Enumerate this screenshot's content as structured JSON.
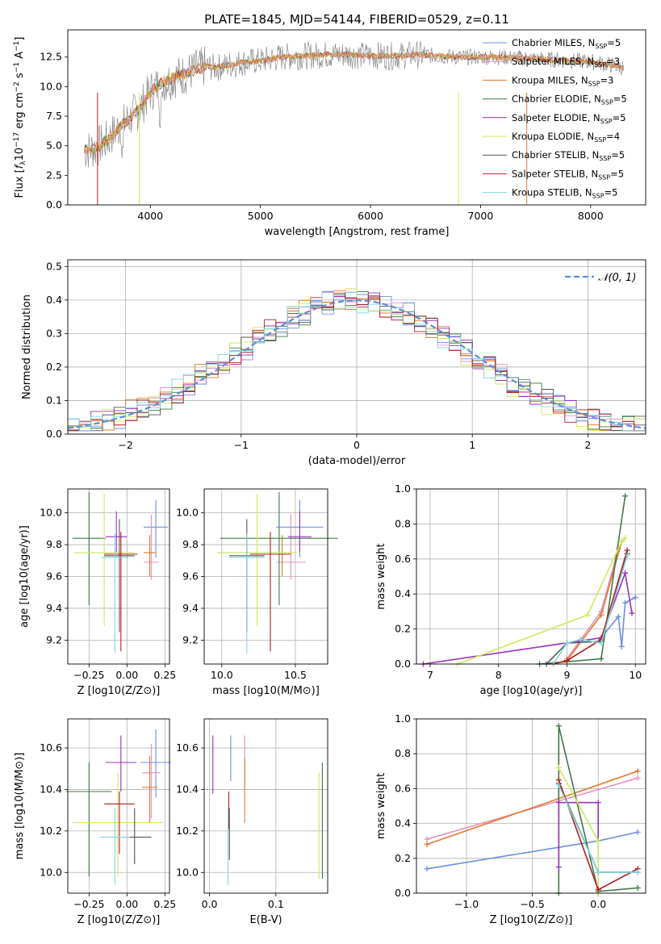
{
  "title": "PLATE=1845, MJD=54144, FIBERID=0529, z=0.11",
  "colors": {
    "chabrier_miles": "#6b8fe0",
    "salpeter_miles": "#e88ec0",
    "kroupa_miles": "#e07a2a",
    "chabrier_elodie": "#3d7a45",
    "salpeter_elodie": "#9b2fc0",
    "kroupa_elodie": "#cfe85a",
    "chabrier_stelib": "#555555",
    "salpeter_stelib": "#b51d1d",
    "kroupa_stelib": "#7fd6e0",
    "normal": "#5b8fd6",
    "spectrum": "#808080"
  },
  "chart_data": [
    {
      "id": "spectrum",
      "type": "line",
      "xlabel": "wavelength [Angstrom, rest frame]",
      "ylabel": "Flux [f_λ 10^-17 erg cm^-2 s^-1 A^-1]",
      "xlim": [
        3250,
        8500
      ],
      "ylim": [
        0,
        14.8
      ],
      "xticks": [
        "4000",
        "5000",
        "6000",
        "7000",
        "8000"
      ],
      "yticks": [
        "0.0",
        "2.5",
        "5.0",
        "7.5",
        "10.0",
        "12.5"
      ],
      "grid": false,
      "legend_position": "right",
      "legend": [
        {
          "label": "Chabrier MILES, N_SSP=5",
          "color": "chabrier_miles"
        },
        {
          "label": "Salpeter MILES, N_SSP=3",
          "color": "salpeter_miles"
        },
        {
          "label": "Kroupa MILES, N_SSP=3",
          "color": "kroupa_miles"
        },
        {
          "label": "Chabrier ELODIE, N_SSP=5",
          "color": "chabrier_elodie"
        },
        {
          "label": "Salpeter ELODIE, N_SSP=5",
          "color": "salpeter_elodie"
        },
        {
          "label": "Kroupa ELODIE, N_SSP=4",
          "color": "kroupa_elodie"
        },
        {
          "label": "Chabrier STELIB, N_SSP=5",
          "color": "chabrier_stelib"
        },
        {
          "label": "Salpeter STELIB, N_SSP=5",
          "color": "salpeter_stelib"
        },
        {
          "label": "Kroupa STELIB, N_SSP=5",
          "color": "kroupa_stelib"
        }
      ],
      "series": [
        {
          "name": "data",
          "color": "spectrum",
          "x": [
            3400,
            3500,
            3600,
            3700,
            3800,
            3900,
            4000,
            4100,
            4200,
            4300,
            4400,
            4500,
            4600,
            4800,
            5000,
            5200,
            5400,
            5600,
            5800,
            6000,
            6200,
            6400,
            6600,
            6800,
            7000,
            7200,
            7400,
            7600,
            7800,
            8000,
            8200,
            8300
          ],
          "y": [
            4.6,
            4.8,
            5.4,
            6.4,
            7.2,
            8.1,
            9.6,
            10.3,
            10.7,
            11.0,
            11.4,
            11.7,
            11.6,
            12.0,
            12.2,
            12.5,
            12.6,
            12.7,
            12.7,
            12.6,
            12.6,
            12.7,
            12.6,
            12.5,
            12.5,
            12.5,
            12.4,
            12.3,
            12.2,
            12.1,
            11.8,
            11.6
          ]
        }
      ]
    },
    {
      "id": "residuals",
      "type": "line",
      "xlabel": "(data-model)/error",
      "ylabel": "Normed distribution",
      "xlim": [
        -2.5,
        2.5
      ],
      "ylim": [
        0,
        0.52
      ],
      "xticks": [
        "−2",
        "−1",
        "0",
        "1",
        "2"
      ],
      "yticks": [
        "0.0",
        "0.1",
        "0.2",
        "0.3",
        "0.4",
        "0.5"
      ],
      "grid": true,
      "legend_position": "top-right",
      "legend": [
        {
          "label": "𝒩(0, 1)",
          "color": "normal"
        }
      ],
      "series": [
        {
          "name": "𝒩(0, 1)",
          "color": "normal",
          "x": [
            -2.5,
            -2.0,
            -1.5,
            -1.0,
            -0.5,
            0.0,
            0.5,
            1.0,
            1.5,
            2.0,
            2.5
          ],
          "y": [
            0.018,
            0.054,
            0.13,
            0.242,
            0.352,
            0.399,
            0.352,
            0.242,
            0.13,
            0.054,
            0.018
          ]
        }
      ]
    },
    {
      "id": "age_vs_Z",
      "type": "scatter",
      "xlabel": "Z [log10(Z/Z⊙)]",
      "ylabel": "age [log10(age/yr)]",
      "xlim": [
        -0.39,
        0.28
      ],
      "ylim": [
        9.05,
        10.15
      ],
      "xticks": [
        "−0.25",
        "0.00",
        "0.25"
      ],
      "yticks": [
        "9.2",
        "9.4",
        "9.6",
        "9.8",
        "10.0"
      ],
      "grid": true,
      "points": [
        {
          "color": "chabrier_miles",
          "x": 0.19,
          "y": 9.91,
          "xerr": 0.08,
          "yerr": [
            9.72,
            10.08
          ]
        },
        {
          "color": "salpeter_miles",
          "x": 0.16,
          "y": 9.69,
          "xerr": 0.05,
          "yerr": [
            9.58,
            9.99
          ]
        },
        {
          "color": "kroupa_miles",
          "x": 0.15,
          "y": 9.75,
          "xerr": 0.04,
          "yerr": [
            9.6,
            9.86
          ]
        },
        {
          "color": "chabrier_elodie",
          "x": -0.25,
          "y": 9.84,
          "xerr": 0.11,
          "yerr": [
            9.42,
            10.13
          ]
        },
        {
          "color": "salpeter_elodie",
          "x": -0.07,
          "y": 9.85,
          "xerr": 0.07,
          "yerr": [
            9.75,
            10.01
          ]
        },
        {
          "color": "kroupa_elodie",
          "x": -0.15,
          "y": 9.75,
          "xerr": 0.2,
          "yerr": [
            9.29,
            10.12
          ]
        },
        {
          "color": "chabrier_stelib",
          "x": -0.05,
          "y": 9.73,
          "xerr": 0.1,
          "yerr": [
            9.25,
            9.96
          ]
        },
        {
          "color": "salpeter_stelib",
          "x": -0.04,
          "y": 9.74,
          "xerr": 0.11,
          "yerr": [
            9.13,
            9.88
          ]
        },
        {
          "color": "kroupa_stelib",
          "x": -0.08,
          "y": 9.72,
          "xerr": 0.09,
          "yerr": [
            9.12,
            9.87
          ]
        }
      ]
    },
    {
      "id": "age_vs_mass",
      "type": "scatter",
      "xlabel": "mass [log10(M/M⊙)]",
      "ylabel": "",
      "xlim": [
        9.88,
        10.72
      ],
      "ylim": [
        9.05,
        10.15
      ],
      "xticks": [
        "10.0",
        "10.5"
      ],
      "yticks": [
        "9.2",
        "9.4",
        "9.6",
        "9.8",
        "10.0"
      ],
      "grid": true,
      "points": [
        {
          "color": "chabrier_miles",
          "x": 10.53,
          "y": 9.91,
          "xerr": 0.16,
          "yerr": [
            9.72,
            10.08
          ]
        },
        {
          "color": "salpeter_miles",
          "x": 10.47,
          "y": 9.69,
          "xerr": 0.1,
          "yerr": [
            9.58,
            9.99
          ]
        },
        {
          "color": "kroupa_miles",
          "x": 10.41,
          "y": 9.75,
          "xerr": 0.07,
          "yerr": [
            9.6,
            9.86
          ]
        },
        {
          "color": "chabrier_elodie",
          "x": 10.39,
          "y": 9.84,
          "xerr": 0.4,
          "yerr": [
            9.42,
            10.13
          ]
        },
        {
          "color": "salpeter_elodie",
          "x": 10.53,
          "y": 9.85,
          "xerr": 0.08,
          "yerr": [
            9.75,
            10.01
          ]
        },
        {
          "color": "kroupa_elodie",
          "x": 10.24,
          "y": 9.75,
          "xerr": 0.27,
          "yerr": [
            9.29,
            10.12
          ]
        },
        {
          "color": "chabrier_stelib",
          "x": 10.17,
          "y": 9.73,
          "xerr": 0.12,
          "yerr": [
            9.25,
            9.96
          ]
        },
        {
          "color": "salpeter_stelib",
          "x": 10.33,
          "y": 9.74,
          "xerr": 0.14,
          "yerr": [
            9.13,
            9.88
          ]
        },
        {
          "color": "kroupa_stelib",
          "x": 10.17,
          "y": 9.72,
          "xerr": 0.12,
          "yerr": [
            9.12,
            9.87
          ]
        }
      ]
    },
    {
      "id": "weight_vs_age",
      "type": "line",
      "xlabel": "age  [log10(age/yr)]",
      "ylabel": "mass weight",
      "xlim": [
        6.8,
        10.15
      ],
      "ylim": [
        0,
        1.0
      ],
      "xticks": [
        "7",
        "8",
        "9",
        "10"
      ],
      "yticks": [
        "0.0",
        "0.2",
        "0.4",
        "0.6",
        "0.8",
        "1.0"
      ],
      "grid": true,
      "series": [
        {
          "color": "chabrier_miles",
          "x": [
            9.5,
            9.75,
            9.8,
            9.85,
            10.0
          ],
          "y": [
            0.15,
            0.27,
            0.1,
            0.35,
            0.38
          ]
        },
        {
          "color": "salpeter_miles",
          "x": [
            9.0,
            9.5,
            9.75
          ],
          "y": [
            0.03,
            0.3,
            0.66
          ]
        },
        {
          "color": "kroupa_miles",
          "x": [
            9.0,
            9.5,
            9.8
          ],
          "y": [
            0.02,
            0.28,
            0.7
          ]
        },
        {
          "color": "chabrier_elodie",
          "x": [
            8.6,
            9.5,
            9.85
          ],
          "y": [
            0.0,
            0.03,
            0.96
          ]
        },
        {
          "color": "salpeter_elodie",
          "x": [
            6.9,
            9.5,
            9.85,
            9.95
          ],
          "y": [
            0.0,
            0.15,
            0.52,
            0.29
          ]
        },
        {
          "color": "kroupa_elodie",
          "x": [
            7.4,
            9.3,
            9.8,
            9.85
          ],
          "y": [
            0.0,
            0.28,
            0.7,
            0.72
          ]
        },
        {
          "color": "chabrier_stelib",
          "x": [
            8.7,
            9.0,
            9.5,
            9.88
          ],
          "y": [
            0.0,
            0.12,
            0.13,
            0.63
          ]
        },
        {
          "color": "salpeter_stelib",
          "x": [
            8.8,
            9.0,
            9.5,
            9.88
          ],
          "y": [
            0.0,
            0.02,
            0.14,
            0.65
          ]
        },
        {
          "color": "kroupa_stelib",
          "x": [
            8.8,
            9.0,
            9.2,
            9.5,
            9.88
          ],
          "y": [
            0.0,
            0.12,
            0.14,
            0.12,
            0.62
          ]
        }
      ]
    },
    {
      "id": "mass_vs_Z",
      "type": "scatter",
      "xlabel": "Z [log10(Z/Z⊙)]",
      "ylabel": "mass [log10(M/M⊙)]",
      "xlim": [
        -0.39,
        0.28
      ],
      "ylim": [
        9.9,
        10.74
      ],
      "xticks": [
        "−0.25",
        "0.00",
        "0.25"
      ],
      "yticks": [
        "10.0",
        "10.2",
        "10.4",
        "10.6"
      ],
      "grid": true,
      "points": [
        {
          "color": "chabrier_miles",
          "x": 0.19,
          "y": 10.53,
          "xerr": 0.1,
          "yerr": [
            10.36,
            10.69
          ]
        },
        {
          "color": "salpeter_miles",
          "x": 0.16,
          "y": 10.48,
          "xerr": 0.06,
          "yerr": [
            10.26,
            10.62
          ]
        },
        {
          "color": "kroupa_miles",
          "x": 0.15,
          "y": 10.41,
          "xerr": 0.05,
          "yerr": [
            10.24,
            10.56
          ]
        },
        {
          "color": "chabrier_elodie",
          "x": -0.25,
          "y": 10.39,
          "xerr": 0.15,
          "yerr": [
            9.98,
            10.53
          ]
        },
        {
          "color": "salpeter_elodie",
          "x": -0.04,
          "y": 10.53,
          "xerr": 0.1,
          "yerr": [
            10.39,
            10.66
          ]
        },
        {
          "color": "kroupa_elodie",
          "x": -0.06,
          "y": 10.24,
          "xerr": 0.3,
          "yerr": [
            9.98,
            10.48
          ]
        },
        {
          "color": "chabrier_stelib",
          "x": 0.05,
          "y": 10.17,
          "xerr": 0.11,
          "yerr": [
            10.04,
            10.31
          ]
        },
        {
          "color": "salpeter_stelib",
          "x": -0.05,
          "y": 10.33,
          "xerr": 0.1,
          "yerr": [
            10.09,
            10.39
          ]
        },
        {
          "color": "kroupa_stelib",
          "x": -0.08,
          "y": 10.17,
          "xerr": 0.1,
          "yerr": [
            9.94,
            10.31
          ]
        }
      ]
    },
    {
      "id": "mass_vs_ebv",
      "type": "scatter",
      "xlabel": "E(B-V)",
      "ylabel": "",
      "xlim": [
        -0.008,
        0.178
      ],
      "ylim": [
        9.9,
        10.74
      ],
      "xticks": [
        "0.0",
        "0.1"
      ],
      "yticks": [
        "10.0",
        "10.2",
        "10.4",
        "10.6"
      ],
      "grid": true,
      "points": [
        {
          "color": "chabrier_miles",
          "x": 0.032,
          "y": 10.53,
          "xerr": 0,
          "yerr": [
            10.44,
            10.66
          ]
        },
        {
          "color": "salpeter_miles",
          "x": 0.053,
          "y": 10.48,
          "xerr": 0,
          "yerr": [
            10.4,
            10.66
          ]
        },
        {
          "color": "kroupa_miles",
          "x": 0.053,
          "y": 10.41,
          "xerr": 0,
          "yerr": [
            10.24,
            10.55
          ]
        },
        {
          "color": "chabrier_elodie",
          "x": 0.17,
          "y": 10.39,
          "xerr": 0,
          "yerr": [
            9.97,
            10.53
          ]
        },
        {
          "color": "salpeter_elodie",
          "x": 0.005,
          "y": 10.53,
          "xerr": 0,
          "yerr": [
            10.38,
            10.66
          ]
        },
        {
          "color": "kroupa_elodie",
          "x": 0.165,
          "y": 10.24,
          "xerr": 0,
          "yerr": [
            9.97,
            10.48
          ]
        },
        {
          "color": "chabrier_stelib",
          "x": 0.03,
          "y": 10.17,
          "xerr": 0,
          "yerr": [
            10.06,
            10.31
          ]
        },
        {
          "color": "salpeter_stelib",
          "x": 0.029,
          "y": 10.33,
          "xerr": 0,
          "yerr": [
            10.21,
            10.39
          ]
        },
        {
          "color": "kroupa_stelib",
          "x": 0.028,
          "y": 10.17,
          "xerr": 0,
          "yerr": [
            9.94,
            10.31
          ]
        }
      ]
    },
    {
      "id": "weight_vs_Z",
      "type": "line",
      "xlabel": "Z [log10(Z/Z⊙)]",
      "ylabel": "mass weight",
      "xlim": [
        -1.38,
        0.36
      ],
      "ylim": [
        0,
        1.0
      ],
      "xticks": [
        "−1.0",
        "−0.5",
        "0.0"
      ],
      "yticks": [
        "0.0",
        "0.2",
        "0.4",
        "0.6",
        "0.8",
        "1.0"
      ],
      "grid": true,
      "series": [
        {
          "color": "chabrier_miles",
          "x": [
            -1.3,
            0.0,
            0.3
          ],
          "y": [
            0.14,
            0.3,
            0.35
          ]
        },
        {
          "color": "salpeter_miles",
          "x": [
            -1.3,
            0.3
          ],
          "y": [
            0.31,
            0.66
          ]
        },
        {
          "color": "kroupa_miles",
          "x": [
            -1.3,
            0.3
          ],
          "y": [
            0.28,
            0.7
          ]
        },
        {
          "color": "chabrier_elodie",
          "x": [
            -0.3,
            -0.3,
            0.0,
            0.3
          ],
          "y": [
            0.0,
            0.96,
            0.01,
            0.03
          ]
        },
        {
          "color": "salpeter_elodie",
          "x": [
            -0.3,
            -0.3,
            0.0,
            0.0
          ],
          "y": [
            0.15,
            0.52,
            0.52,
            0.3
          ]
        },
        {
          "color": "kroupa_elodie",
          "x": [
            -0.3,
            0.0,
            0.0
          ],
          "y": [
            0.72,
            0.3,
            0.0
          ]
        },
        {
          "color": "chabrier_stelib",
          "x": [
            -0.3,
            0.0,
            0.3
          ],
          "y": [
            0.63,
            0.12,
            0.12
          ]
        },
        {
          "color": "salpeter_stelib",
          "x": [
            -0.3,
            0.0,
            0.3
          ],
          "y": [
            0.65,
            0.02,
            0.14
          ]
        },
        {
          "color": "kroupa_stelib",
          "x": [
            -0.3,
            0.0,
            0.3
          ],
          "y": [
            0.62,
            0.12,
            0.12
          ]
        }
      ]
    }
  ]
}
